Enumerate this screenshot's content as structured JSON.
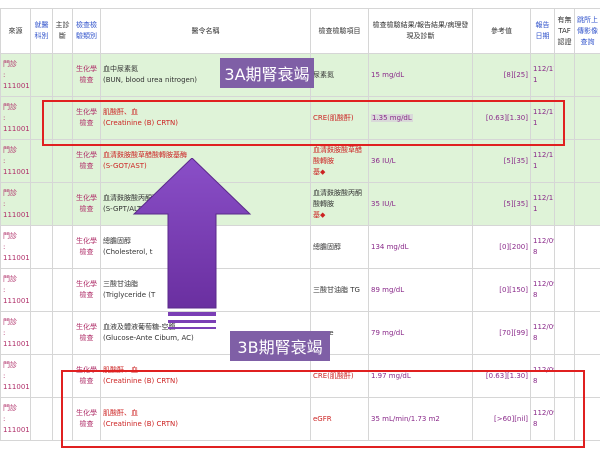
{
  "topbar_text": "",
  "columns": {
    "source": "來源",
    "dept": "就醫科別",
    "diag": "主診斷",
    "category": "檢查檢驗類別",
    "order": "醫令名稱",
    "item": "檢查檢驗項目",
    "result": "檢查檢驗結果/報告結果/病理發現及診斷",
    "ref": "參考值",
    "report_date": "報告日期",
    "taf": "有無TAF認證",
    "link": "跳所上傳影像查詢"
  },
  "rows": [
    {
      "style": "green",
      "src1": "門診",
      "src2": "1110018",
      "category": "生化學檢查",
      "order1": "血中尿素氮",
      "order2": "(BUN, blood urea nitrogen)",
      "order_red": false,
      "item": "尿素氮",
      "item_red": false,
      "item_arrow": "",
      "result": "15 mg/dL",
      "result_hl": false,
      "ref": "[8][25]",
      "date1": "112/11/0",
      "date2": "1"
    },
    {
      "style": "green",
      "src1": "門診",
      "src2": "1110018",
      "category": "生化學檢查",
      "order1": "肌酸酐、血",
      "order2": "(Creatinine (B) CRTN)",
      "order_red": true,
      "item": "CRE(肌酸酐)",
      "item_red": true,
      "item_arrow": "",
      "result": "1.35 mg/dL",
      "result_hl": true,
      "ref": "[0.63][1.30]",
      "date1": "112/11/0",
      "date2": "1"
    },
    {
      "style": "green",
      "src1": "門診",
      "src2": "1110018",
      "category": "生化學檢查",
      "order1": "血清麩胺酸草醋酸轉胺基酶",
      "order2": "(S-GOT/AST)",
      "order_red": true,
      "item": "血清麩胺酸草醋酸轉胺",
      "item_red": true,
      "item_arrow": "基◆",
      "result": "36 IU/L",
      "result_hl": false,
      "ref": "[5][35]",
      "date1": "112/11/0",
      "date2": "1"
    },
    {
      "style": "green",
      "src1": "門診",
      "src2": "1110018",
      "category": "生化學檢查",
      "order1": "血清麩胺酸丙酮酸轉胺基酶",
      "order2": "(S-GPT/ALT)",
      "order_red": false,
      "item": "血清麩胺酸丙酮酸轉胺",
      "item_red": false,
      "item_arrow": "基◆",
      "result": "35 IU/L",
      "result_hl": false,
      "ref": "[5][35]",
      "date1": "112/11/0",
      "date2": "1"
    },
    {
      "style": "white",
      "src1": "門診",
      "src2": "1110018",
      "category": "生化學檢查",
      "order1": "總膽固醇",
      "order2": "(Cholesterol, t",
      "order_red": false,
      "item": "總膽固醇",
      "item_red": false,
      "item_arrow": "",
      "result": "134 mg/dL",
      "result_hl": false,
      "ref": "[0][200]",
      "date1": "112/09/2",
      "date2": "8"
    },
    {
      "style": "white",
      "src1": "門診",
      "src2": "1110018",
      "category": "生化學檢查",
      "order1": "三酸甘油脂",
      "order2": "(Triglyceride (T",
      "order_red": false,
      "item": "三酸甘油脂 TG",
      "item_red": false,
      "item_arrow": "",
      "result": "89 mg/dL",
      "result_hl": false,
      "ref": "[0][150]",
      "date1": "112/09/2",
      "date2": "8"
    },
    {
      "style": "white",
      "src1": "門診",
      "src2": "1110018",
      "category": "生化學檢查",
      "order1": "血液及體液葡萄糖-空腹",
      "order2": "(Glucose-Ante Cibum, AC)",
      "order_red": false,
      "item": "ucose",
      "item_red": false,
      "item_arrow": "",
      "result": "79 mg/dL",
      "result_hl": false,
      "ref": "[70][99]",
      "date1": "112/09/2",
      "date2": "8"
    },
    {
      "style": "white",
      "src1": "門診",
      "src2": "1110018",
      "category": "生化學檢查",
      "order1": "肌酸酐、血",
      "order2": "(Creatinine (B) CRTN)",
      "order_red": true,
      "item": "CRE(肌酸酐)",
      "item_red": true,
      "item_arrow": "",
      "result": "1.97 mg/dL",
      "result_hl": false,
      "ref": "[0.63][1.30]",
      "date1": "112/09/2",
      "date2": "8"
    },
    {
      "style": "white",
      "src1": "門診",
      "src2": "1110018",
      "category": "生化學檢查",
      "order1": "肌酸酐、血",
      "order2": "(Creatinine (B) CRTN)",
      "order_red": true,
      "item": "eGFR",
      "item_red": true,
      "item_arrow": "",
      "result": "35 mL/min/1.73 m2",
      "result_hl": false,
      "ref": "[>60][nil]",
      "date1": "112/09/2",
      "date2": "8"
    }
  ],
  "callouts": {
    "stage_3a": "3A期腎衰竭",
    "stage_3b": "3B期腎衰竭"
  },
  "colors": {
    "callout_bg": "#7f5fa6",
    "highlight_box": "#e02020",
    "green_row": "#dff3d8",
    "arrow": "#7b3fb5"
  }
}
